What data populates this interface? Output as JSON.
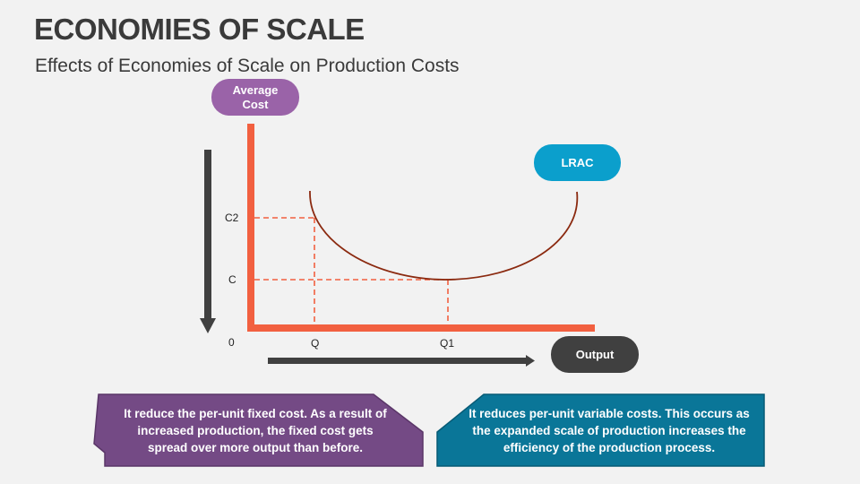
{
  "title": "ECONOMIES OF SCALE",
  "subtitle": "Effects of Economies of Scale on Production Costs",
  "diagram": {
    "y_axis_label": "Average Cost",
    "x_axis_label": "Output",
    "curve_label": "LRAC",
    "y_ticks": [
      "C2",
      "C"
    ],
    "x_ticks": [
      "Q",
      "Q1"
    ],
    "origin": "0",
    "colors": {
      "axis": "#f26040",
      "curve": "#8b2a10",
      "avg_cost_pill": "#9a63a8",
      "lrac_pill": "#0b9fcc",
      "output_pill": "#404040",
      "arrow": "#404040"
    }
  },
  "boxes": [
    {
      "text": "It reduce the per-unit fixed cost. As a result of increased production, the fixed cost gets spread over more output than before.",
      "color": "#744a85"
    },
    {
      "text": "It reduces per-unit variable costs. This occurs as the expanded scale of production increases the efficiency of the production process.",
      "color": "#0a7698"
    }
  ]
}
